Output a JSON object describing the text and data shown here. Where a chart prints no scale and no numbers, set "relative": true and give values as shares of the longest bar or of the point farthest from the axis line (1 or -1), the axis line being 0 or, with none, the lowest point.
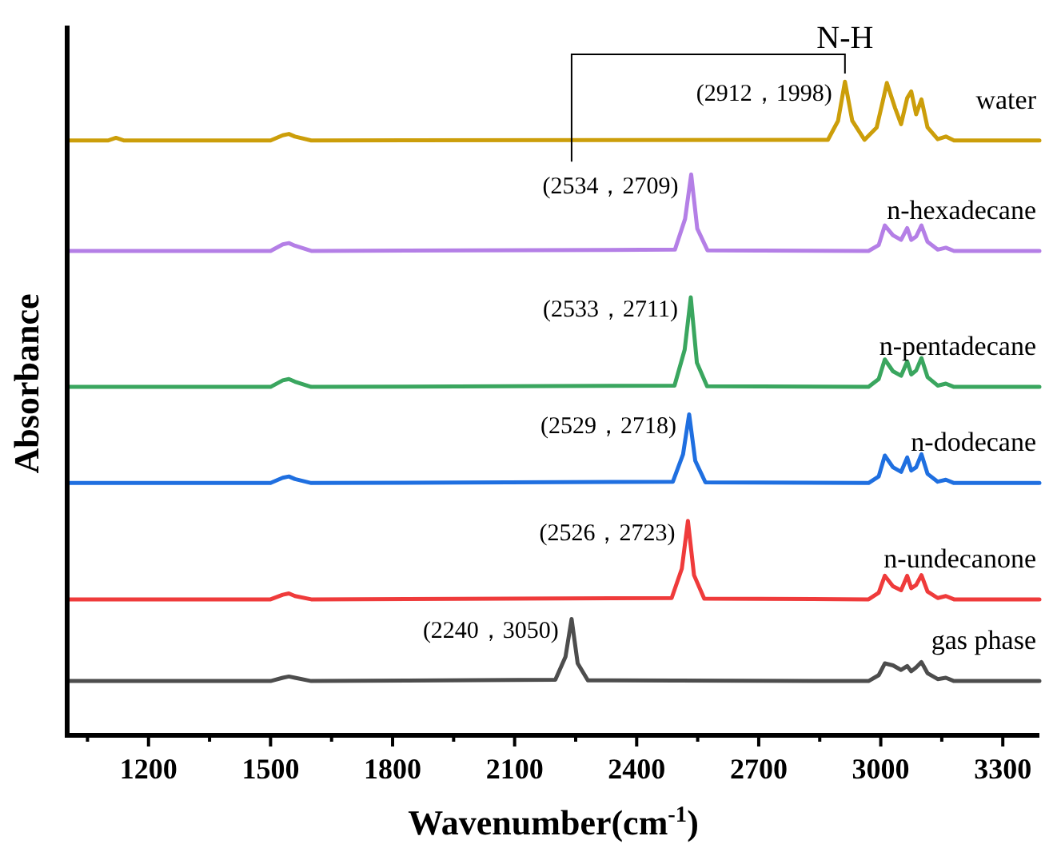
{
  "chart_data": {
    "type": "line",
    "relative": true,
    "xlabel": "Wavenumber(cm$^{-1}$)",
    "ylabel": "Absorbance",
    "xlim": [
      1000,
      3390
    ],
    "xticks": [
      {
        "value": 1050,
        "label": null
      },
      1200,
      {
        "value": 1350,
        "label": null
      },
      1500,
      {
        "value": 1650,
        "label": null
      },
      1800,
      {
        "value": 1950,
        "label": null
      },
      2100,
      {
        "value": 2250,
        "label": null
      },
      2400,
      {
        "value": 2550,
        "label": null
      },
      2700,
      {
        "value": 2850,
        "label": null
      },
      3000,
      {
        "value": 3150,
        "label": null
      },
      3300
    ],
    "grid": false,
    "marker": "none",
    "line_style": "solid",
    "series": [
      {
        "name": "water",
        "color": "#cc9e0a",
        "x": [
          1000,
          1100,
          1120,
          1140,
          1500,
          1530,
          1545,
          1560,
          1600,
          2870,
          2895,
          2912,
          2930,
          2960,
          2990,
          3005,
          3015,
          3035,
          3050,
          3065,
          3075,
          3087,
          3100,
          3115,
          3140,
          3160,
          3180,
          3390
        ],
        "values": [
          0.91,
          0.91,
          0.914,
          0.91,
          0.91,
          0.918,
          0.92,
          0.916,
          0.91,
          0.911,
          0.94,
          1.0,
          0.94,
          0.911,
          0.93,
          0.97,
          0.998,
          0.96,
          0.935,
          0.975,
          0.985,
          0.95,
          0.973,
          0.93,
          0.912,
          0.916,
          0.91,
          0.91
        ]
      },
      {
        "name": "n-hexadecane",
        "color": "#b47fe6",
        "x": [
          1000,
          1500,
          1530,
          1545,
          1560,
          1600,
          2494,
          2519,
          2534,
          2549,
          2574,
          2970,
          2995,
          3010,
          3030,
          3050,
          3065,
          3075,
          3087,
          3100,
          3115,
          3140,
          3160,
          3180,
          3390
        ],
        "values": [
          0.741,
          0.741,
          0.751,
          0.753,
          0.749,
          0.741,
          0.743,
          0.79,
          0.858,
          0.775,
          0.742,
          0.741,
          0.75,
          0.78,
          0.765,
          0.758,
          0.776,
          0.758,
          0.763,
          0.78,
          0.755,
          0.743,
          0.746,
          0.741,
          0.741
        ]
      },
      {
        "name": "n-pentadecane",
        "color": "#3aa65f",
        "x": [
          1000,
          1500,
          1530,
          1545,
          1560,
          1600,
          2493,
          2518,
          2533,
          2548,
          2573,
          2970,
          2995,
          3010,
          3030,
          3050,
          3065,
          3075,
          3087,
          3100,
          3115,
          3140,
          3160,
          3180,
          3390
        ],
        "values": [
          0.533,
          0.533,
          0.543,
          0.545,
          0.541,
          0.533,
          0.535,
          0.59,
          0.67,
          0.57,
          0.534,
          0.533,
          0.545,
          0.575,
          0.557,
          0.55,
          0.572,
          0.552,
          0.558,
          0.577,
          0.548,
          0.535,
          0.538,
          0.533,
          0.533
        ]
      },
      {
        "name": "n-dodecane",
        "color": "#1f6fe0",
        "x": [
          1000,
          1500,
          1530,
          1545,
          1560,
          1600,
          2489,
          2514,
          2529,
          2544,
          2569,
          2970,
          2995,
          3010,
          3030,
          3050,
          3065,
          3075,
          3087,
          3100,
          3115,
          3140,
          3160,
          3180,
          3390
        ],
        "values": [
          0.386,
          0.386,
          0.394,
          0.396,
          0.392,
          0.386,
          0.388,
          0.43,
          0.491,
          0.42,
          0.387,
          0.386,
          0.396,
          0.428,
          0.41,
          0.403,
          0.425,
          0.405,
          0.41,
          0.43,
          0.4,
          0.388,
          0.391,
          0.386,
          0.386
        ]
      },
      {
        "name": "n-undecanone",
        "color": "#ef3b3b",
        "x": [
          1000,
          1500,
          1530,
          1545,
          1560,
          1600,
          2486,
          2511,
          2526,
          2541,
          2566,
          2970,
          2995,
          3010,
          3030,
          3050,
          3065,
          3075,
          3087,
          3100,
          3115,
          3140,
          3160,
          3180,
          3390
        ],
        "values": [
          0.208,
          0.208,
          0.215,
          0.217,
          0.213,
          0.208,
          0.21,
          0.255,
          0.328,
          0.245,
          0.209,
          0.208,
          0.218,
          0.244,
          0.228,
          0.222,
          0.244,
          0.225,
          0.23,
          0.245,
          0.22,
          0.21,
          0.213,
          0.208,
          0.208
        ]
      },
      {
        "name": "gas phase",
        "color": "#4d4d4d",
        "x": [
          1000,
          1500,
          1530,
          1545,
          1560,
          1600,
          2200,
          2225,
          2240,
          2255,
          2280,
          2970,
          2995,
          3010,
          3030,
          3050,
          3065,
          3075,
          3087,
          3100,
          3115,
          3140,
          3160,
          3180,
          3390
        ],
        "values": [
          0.083,
          0.083,
          0.088,
          0.09,
          0.088,
          0.083,
          0.085,
          0.12,
          0.178,
          0.11,
          0.084,
          0.083,
          0.092,
          0.11,
          0.107,
          0.1,
          0.106,
          0.098,
          0.104,
          0.112,
          0.095,
          0.086,
          0.088,
          0.083,
          0.083
        ]
      }
    ],
    "annotations": [
      {
        "text": "N-H",
        "x": 2912,
        "y": 1.0
      },
      {
        "text": "(2912，1998)",
        "x": 2912,
        "y": 1.0
      },
      {
        "text": "(2534，2709)",
        "x": 2534,
        "y": 0.858
      },
      {
        "text": "(2533，2711)",
        "x": 2533,
        "y": 0.67
      },
      {
        "text": "(2529，2718)",
        "x": 2529,
        "y": 0.491
      },
      {
        "text": "(2526，2723)",
        "x": 2526,
        "y": 0.328
      },
      {
        "text": "(2240，3050)",
        "x": 2240,
        "y": 0.178
      }
    ]
  }
}
